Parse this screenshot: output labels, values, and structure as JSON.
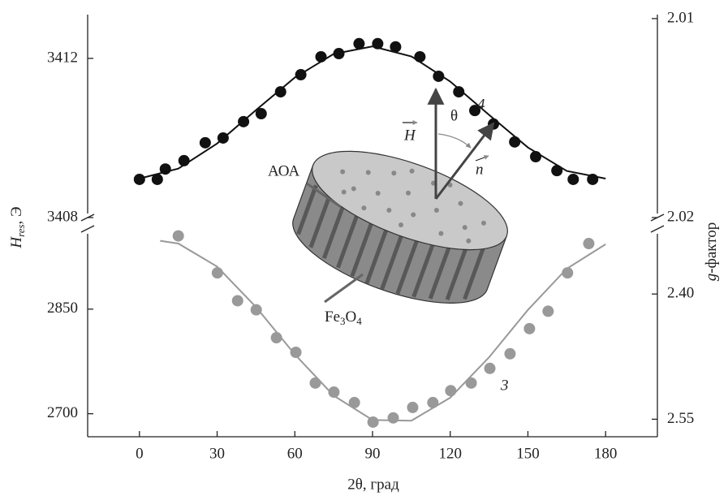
{
  "chart_data": [
    {
      "type": "scatter",
      "ylim": [
        3408,
        3413.1
      ],
      "yticks": [
        3408,
        3412
      ],
      "y2lim": [
        2.02,
        2.0098
      ],
      "y2ticks": [
        2.01,
        2.02
      ],
      "ylabel": [
        "H",
        "res",
        ", Э"
      ],
      "y2label": [
        "g",
        "-фактор"
      ],
      "xlim": [
        -20,
        200
      ],
      "series": [
        {
          "type": "scatter",
          "color": "#111111",
          "x": [
            0,
            6.9,
            10,
            17.2,
            25.4,
            32.3,
            40.2,
            47,
            54.5,
            62.3,
            70.1,
            77,
            84.8,
            92,
            98.9,
            108.3,
            115.5,
            123.3,
            129.5,
            136.7,
            144.9,
            153,
            161.2,
            167.5,
            175
          ],
          "values": [
            3408.96,
            3408.96,
            3409.22,
            3409.43,
            3409.88,
            3410.0,
            3410.41,
            3410.61,
            3411.16,
            3411.59,
            3412.04,
            3412.12,
            3412.37,
            3412.37,
            3412.29,
            3412.04,
            3411.55,
            3411.16,
            3410.69,
            3410.35,
            3409.9,
            3409.53,
            3409.18,
            3408.96,
            3408.96
          ]
        },
        {
          "type": "line",
          "color": "#111111",
          "x": [
            0,
            15,
            30,
            45,
            60,
            75,
            90,
            105,
            120,
            135,
            150,
            165,
            180
          ],
          "values": [
            3408.98,
            3409.23,
            3409.86,
            3410.7,
            3411.52,
            3412.11,
            3412.3,
            3412.05,
            3411.42,
            3410.58,
            3409.76,
            3409.17,
            3408.98
          ]
        }
      ]
    },
    {
      "type": "scatter",
      "ylim": [
        2667,
        2965
      ],
      "yticks": [
        2700,
        2850
      ],
      "y2lim": [
        2.571,
        2.322
      ],
      "y2ticks": [
        {
          "value": 2.4,
          "label": "2.40"
        },
        2.55
      ],
      "xlim": [
        -20,
        200
      ],
      "xticks": [
        0,
        30,
        60,
        90,
        120,
        150,
        180
      ],
      "xlabel": "2θ, град",
      "series": [
        {
          "type": "scatter",
          "color": "#999999",
          "x": [
            15,
            30.1,
            37.9,
            45.1,
            52.9,
            60.4,
            67.9,
            75.1,
            83,
            90.2,
            98,
            105.5,
            113.3,
            120.2,
            128.1,
            135.3,
            143.1,
            150.6,
            157.8,
            165.3,
            173.5
          ],
          "values": [
            2955,
            2902,
            2862,
            2849,
            2809,
            2788,
            2744,
            2731,
            2716,
            2688,
            2694,
            2709,
            2716,
            2733,
            2744,
            2765,
            2786,
            2822,
            2847,
            2902,
            2944
          ]
        },
        {
          "type": "line",
          "color": "#999999",
          "x": [
            8,
            15,
            30,
            45,
            60,
            75,
            90,
            105,
            120,
            135,
            150,
            165,
            180
          ],
          "values": [
            2948,
            2944,
            2911,
            2853,
            2785,
            2726,
            2691,
            2690,
            2723,
            2781,
            2849,
            2908,
            2943
          ]
        }
      ]
    }
  ],
  "annotations": {
    "aoa": "АОА",
    "fe3o4": [
      "Fe",
      "3",
      "O",
      "4"
    ],
    "h": "H",
    "n": "n",
    "theta": "θ",
    "label4": "4",
    "label3": "3"
  }
}
